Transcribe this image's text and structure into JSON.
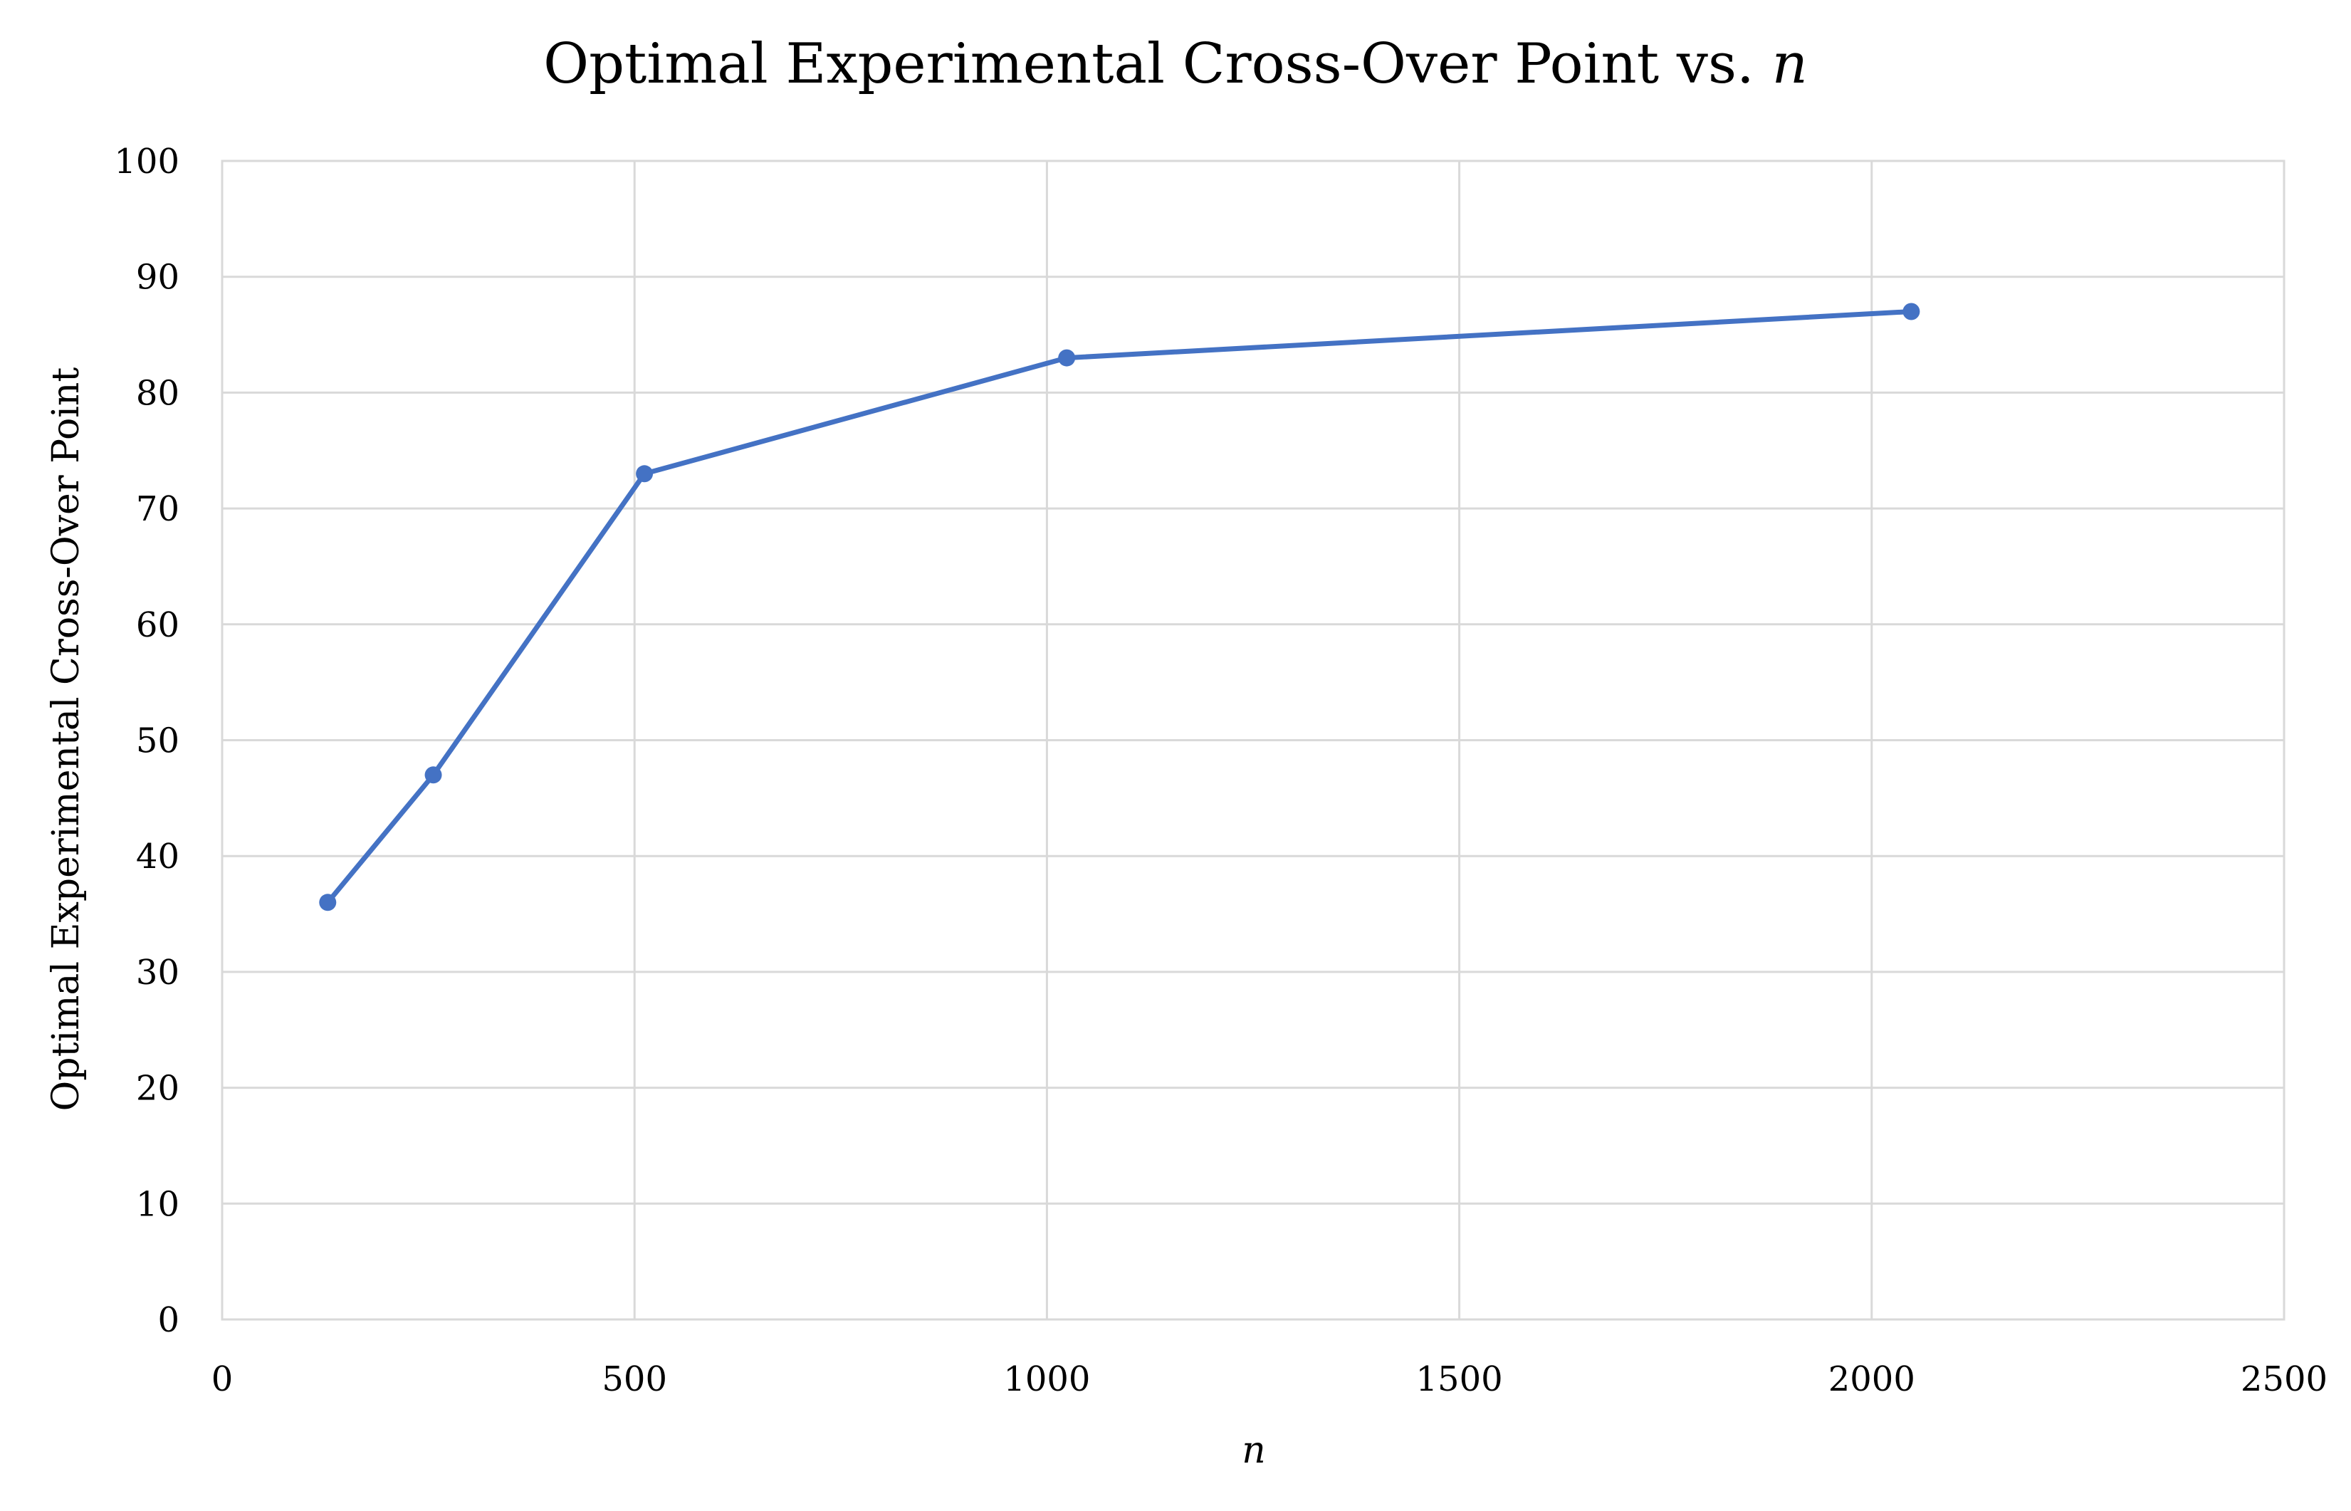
{
  "chart_data": {
    "type": "line",
    "title": {
      "prefix": "Optimal Experimental Cross-Over Point vs. ",
      "variable": "n"
    },
    "xlabel": "n",
    "ylabel": "Optimal Experimental Cross-Over Point",
    "xlim": [
      0,
      2500
    ],
    "ylim": [
      0,
      100
    ],
    "x_ticks": [
      0,
      500,
      1000,
      1500,
      2000,
      2500
    ],
    "y_ticks": [
      0,
      10,
      20,
      30,
      40,
      50,
      60,
      70,
      80,
      90,
      100
    ],
    "grid": true,
    "legend": "none",
    "series": [
      {
        "color": "#4472c4",
        "x": [
          128,
          256,
          512,
          1024,
          2048
        ],
        "y": [
          36,
          47,
          73,
          83,
          87
        ]
      }
    ]
  }
}
